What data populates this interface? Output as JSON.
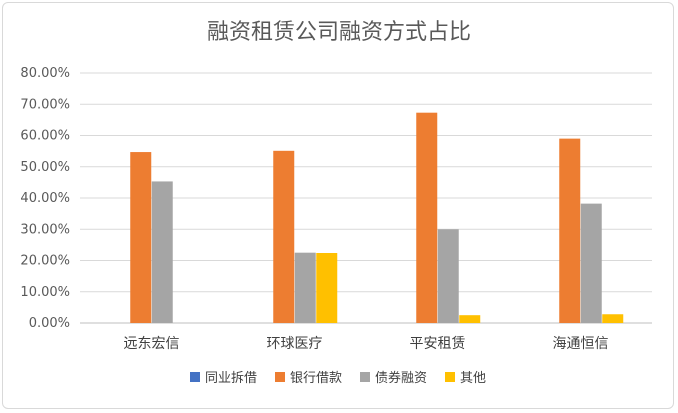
{
  "chart_data": {
    "type": "bar",
    "title": "融资租赁公司融资方式占比",
    "categories": [
      "远东宏信",
      "环球医疗",
      "平安租赁",
      "海通恒信"
    ],
    "series": [
      {
        "name": "同业拆借",
        "color": "#4472c4",
        "values": [
          0,
          0,
          0,
          0
        ]
      },
      {
        "name": "银行借款",
        "color": "#ed7d31",
        "values": [
          0.547,
          0.551,
          0.673,
          0.59
        ]
      },
      {
        "name": "债券融资",
        "color": "#a5a5a5",
        "values": [
          0.453,
          0.225,
          0.3,
          0.382
        ]
      },
      {
        "name": "其他",
        "color": "#ffc000",
        "values": [
          0,
          0.224,
          0.025,
          0.028
        ]
      }
    ],
    "ylim": [
      0,
      0.8
    ],
    "yticks": [
      "0.00%",
      "10.00%",
      "20.00%",
      "30.00%",
      "40.00%",
      "50.00%",
      "60.00%",
      "70.00%",
      "80.00%"
    ],
    "grid": true,
    "legend_position": "bottom"
  }
}
